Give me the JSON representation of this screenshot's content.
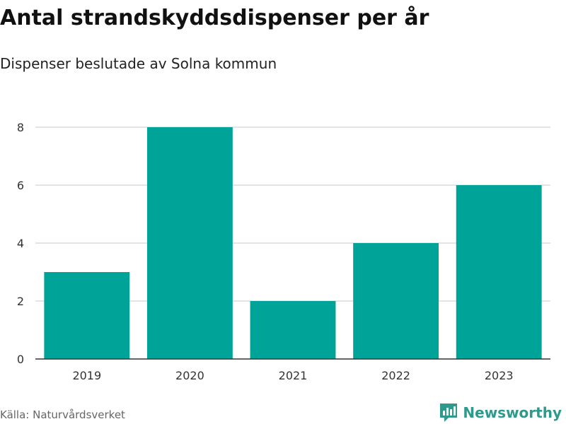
{
  "title": "Antal strandskyddsdispenser per år",
  "subtitle": "Dispenser beslutade av Solna kommun",
  "source": "Källa: Naturvårdsverket",
  "brand": "Newsworthy",
  "colors": {
    "bar": "#00a398",
    "grid": "#dcdcdc",
    "axis": "#333333",
    "brand": "#2e9a8c"
  },
  "chart_data": {
    "type": "bar",
    "title": "Antal strandskyddsdispenser per år",
    "subtitle": "Dispenser beslutade av Solna kommun",
    "xlabel": "",
    "ylabel": "",
    "categories": [
      "2019",
      "2020",
      "2021",
      "2022",
      "2023"
    ],
    "values": [
      3,
      8,
      2,
      4,
      6
    ],
    "ylim": [
      0,
      8
    ],
    "yticks": [
      0,
      2,
      4,
      6,
      8
    ],
    "grid": true,
    "legend": "none"
  }
}
